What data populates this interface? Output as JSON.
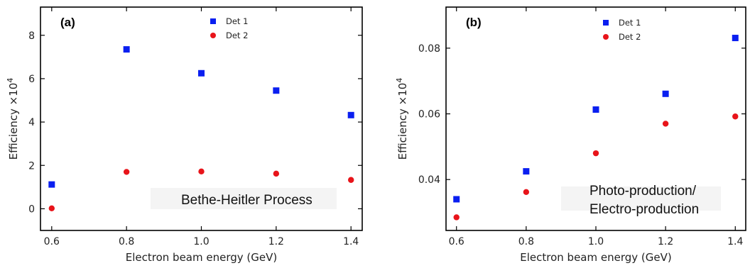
{
  "colors": {
    "det1": "#0a1ff0",
    "det2": "#e8141a",
    "annot_bg": "#f4f4f4"
  },
  "chart_data": [
    {
      "type": "scatter",
      "panel_label": "(a)",
      "xlabel": "Electron beam energy (GeV)",
      "ylabel": "Efficiency ×10",
      "ylabel_sup": "4",
      "xlim": [
        0.57,
        1.43
      ],
      "ylim": [
        -1.0,
        9.3
      ],
      "xticks": [
        0.6,
        0.8,
        1.0,
        1.2,
        1.4
      ],
      "xtick_labels": [
        "0.6",
        "0.8",
        "1.0",
        "1.2",
        "1.4"
      ],
      "yticks": [
        0,
        2,
        4,
        6,
        8
      ],
      "ytick_labels": [
        "0",
        "2",
        "4",
        "6",
        "8"
      ],
      "legend_position": "top-center",
      "annotation": [
        "Bethe-Heitler Process"
      ],
      "series": [
        {
          "name": "Det 1",
          "marker": "square",
          "x": [
            0.6,
            0.8,
            1.0,
            1.2,
            1.4
          ],
          "y": [
            1.12,
            7.35,
            6.25,
            5.45,
            4.32
          ]
        },
        {
          "name": "Det 2",
          "marker": "circle",
          "x": [
            0.6,
            0.8,
            1.0,
            1.2,
            1.4
          ],
          "y": [
            0.02,
            1.7,
            1.72,
            1.62,
            1.33
          ]
        }
      ]
    },
    {
      "type": "scatter",
      "panel_label": "(b)",
      "xlabel": "Electron beam energy (GeV)",
      "ylabel": "Efficiency ×10",
      "ylabel_sup": "4",
      "xlim": [
        0.57,
        1.43
      ],
      "ylim": [
        0.0245,
        0.0925
      ],
      "xticks": [
        0.6,
        0.8,
        1.0,
        1.2,
        1.4
      ],
      "xtick_labels": [
        "0.6",
        "0.8",
        "1.0",
        "1.2",
        "1.4"
      ],
      "yticks": [
        0.04,
        0.06,
        0.08
      ],
      "ytick_labels": [
        "0.04",
        "0.06",
        "0.08"
      ],
      "legend_position": "top-center",
      "annotation": [
        "Photo-production/",
        "Electro-production"
      ],
      "series": [
        {
          "name": "Det 1",
          "marker": "square",
          "x": [
            0.6,
            0.8,
            1.0,
            1.2,
            1.4
          ],
          "y": [
            0.034,
            0.0425,
            0.0613,
            0.0661,
            0.0831
          ]
        },
        {
          "name": "Det 2",
          "marker": "circle",
          "x": [
            0.6,
            0.8,
            1.0,
            1.2,
            1.4
          ],
          "y": [
            0.0285,
            0.0362,
            0.048,
            0.057,
            0.0592
          ]
        }
      ]
    }
  ]
}
